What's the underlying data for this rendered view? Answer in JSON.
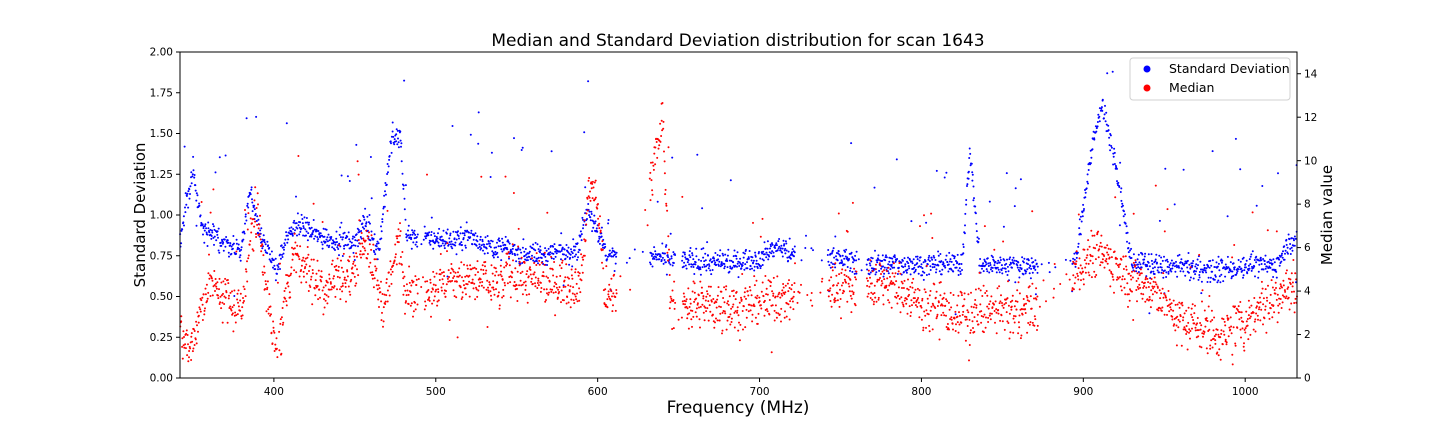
{
  "chart_data": {
    "type": "scatter",
    "title": "Median and Standard Deviation distribution for scan 1643",
    "xlabel": "Frequency (MHz)",
    "ylabel_left": "Standard Deviation",
    "ylabel_right": "Median value",
    "xlim": [
      342,
      1032
    ],
    "ylim_left": [
      0,
      2.0
    ],
    "ylim_right": [
      0,
      15
    ],
    "x_ticks": [
      "400",
      "500",
      "600",
      "700",
      "800",
      "900",
      "1000"
    ],
    "y_left_ticks": [
      "0.00",
      "0.25",
      "0.50",
      "0.75",
      "1.00",
      "1.25",
      "1.50",
      "1.75",
      "2.00"
    ],
    "y_right_ticks": [
      "0",
      "2",
      "4",
      "6",
      "8",
      "10",
      "12",
      "14"
    ],
    "grid": false,
    "legend_position": "top-right",
    "colors": {
      "std": "#0000ff",
      "median": "#ff0000"
    },
    "series": [
      {
        "name": "Standard Deviation",
        "axis": "left",
        "trend": [
          [
            342,
            0.85
          ],
          [
            350,
            1.3
          ],
          [
            356,
            0.9
          ],
          [
            380,
            0.78
          ],
          [
            385,
            1.15
          ],
          [
            390,
            0.95
          ],
          [
            397,
            0.74
          ],
          [
            402,
            0.68
          ],
          [
            408,
            0.86
          ],
          [
            415,
            0.95
          ],
          [
            425,
            0.88
          ],
          [
            440,
            0.84
          ],
          [
            450,
            0.83
          ],
          [
            456,
            0.97
          ],
          [
            465,
            0.78
          ],
          [
            472,
            1.42
          ],
          [
            478,
            1.5
          ],
          [
            482,
            0.88
          ],
          [
            486,
            0.87
          ],
          [
            512,
            0.84
          ],
          [
            520,
            0.88
          ],
          [
            530,
            0.82
          ],
          [
            540,
            0.8
          ],
          [
            546,
            0.79
          ],
          [
            560,
            0.76
          ],
          [
            566,
            0.75
          ],
          [
            588,
            0.8
          ],
          [
            594,
            1.05
          ],
          [
            598,
            0.95
          ],
          [
            606,
            0.75
          ],
          [
            620,
            0.74
          ],
          [
            645,
            0.73
          ],
          [
            665,
            0.71
          ],
          [
            680,
            0.7
          ],
          [
            700,
            0.74
          ],
          [
            710,
            0.8
          ],
          [
            715,
            0.8
          ],
          [
            720,
            0.76
          ],
          [
            745,
            0.75
          ],
          [
            756,
            0.72
          ],
          [
            770,
            0.7
          ],
          [
            780,
            0.7
          ],
          [
            800,
            0.7
          ],
          [
            825,
            0.69
          ],
          [
            830,
            1.4
          ],
          [
            836,
            0.7
          ],
          [
            850,
            0.69
          ],
          [
            870,
            0.69
          ],
          [
            895,
            0.7
          ],
          [
            905,
            1.4
          ],
          [
            912,
            1.7
          ],
          [
            918,
            1.4
          ],
          [
            930,
            0.71
          ],
          [
            950,
            0.68
          ],
          [
            965,
            0.68
          ],
          [
            980,
            0.65
          ],
          [
            1000,
            0.69
          ],
          [
            1020,
            0.69
          ],
          [
            1028,
            0.85
          ]
        ]
      },
      {
        "name": "Median",
        "axis": "right",
        "trend": [
          [
            342,
            2.0
          ],
          [
            348,
            1.3
          ],
          [
            355,
            3.0
          ],
          [
            360,
            4.5
          ],
          [
            380,
            3.0
          ],
          [
            385,
            6.5
          ],
          [
            390,
            7.5
          ],
          [
            395,
            4.5
          ],
          [
            400,
            1.6
          ],
          [
            403,
            1.0
          ],
          [
            408,
            4.0
          ],
          [
            412,
            6.0
          ],
          [
            416,
            5.5
          ],
          [
            425,
            4.8
          ],
          [
            432,
            4.0
          ],
          [
            440,
            5.0
          ],
          [
            446,
            4.5
          ],
          [
            455,
            6.5
          ],
          [
            460,
            5.5
          ],
          [
            468,
            3.2
          ],
          [
            475,
            5.5
          ],
          [
            478,
            7.0
          ],
          [
            480,
            4.5
          ],
          [
            486,
            4.0
          ],
          [
            500,
            4.2
          ],
          [
            510,
            4.5
          ],
          [
            520,
            4.4
          ],
          [
            530,
            4.6
          ],
          [
            540,
            4.2
          ],
          [
            545,
            5.0
          ],
          [
            555,
            4.6
          ],
          [
            565,
            4.4
          ],
          [
            580,
            4.4
          ],
          [
            590,
            4.5
          ],
          [
            595,
            9.0
          ],
          [
            600,
            8.0
          ],
          [
            605,
            3.8
          ],
          [
            620,
            3.8
          ],
          [
            640,
            12.0
          ],
          [
            645,
            3.5
          ],
          [
            670,
            3.3
          ],
          [
            690,
            3.3
          ],
          [
            710,
            3.6
          ],
          [
            720,
            3.7
          ],
          [
            745,
            4.2
          ],
          [
            756,
            4.2
          ],
          [
            770,
            4.3
          ],
          [
            780,
            4.4
          ],
          [
            800,
            3.5
          ],
          [
            815,
            3.1
          ],
          [
            830,
            2.8
          ],
          [
            840,
            3.3
          ],
          [
            845,
            3.0
          ],
          [
            870,
            3.2
          ],
          [
            895,
            5.0
          ],
          [
            910,
            6.0
          ],
          [
            920,
            5.0
          ],
          [
            930,
            4.6
          ],
          [
            950,
            3.6
          ],
          [
            960,
            2.6
          ],
          [
            975,
            2.4
          ],
          [
            982,
            1.9
          ],
          [
            990,
            2.2
          ],
          [
            1000,
            2.6
          ],
          [
            1010,
            3.5
          ],
          [
            1020,
            3.8
          ],
          [
            1030,
            4.3
          ]
        ]
      }
    ]
  }
}
